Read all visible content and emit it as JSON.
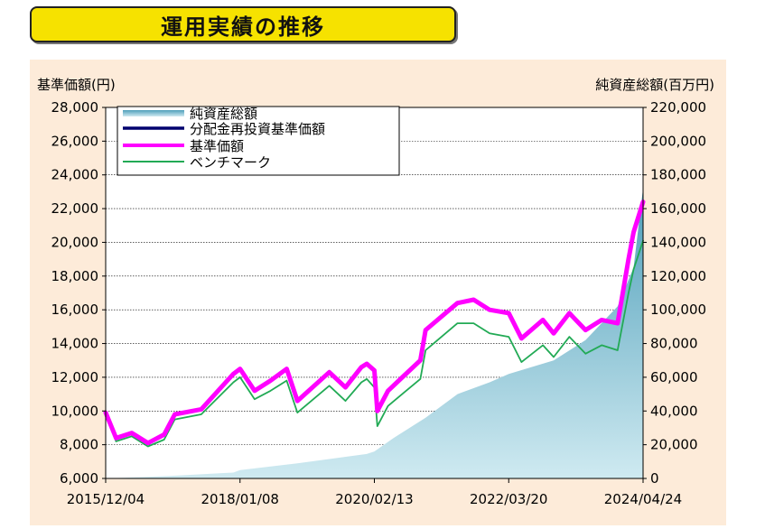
{
  "title": "運用実績の推移",
  "chart_data": {
    "type": "line",
    "ylabel_left": "基準価額(円)",
    "ylabel_right": "純資産総額(百万円)",
    "xticks": [
      "2015/12/04",
      "2018/01/08",
      "2020/02/13",
      "2022/03/20",
      "2024/04/24"
    ],
    "ylim_left": [
      6000,
      28000
    ],
    "ylim_right": [
      0,
      220000
    ],
    "yticks_left": [
      "6,000",
      "8,000",
      "10,000",
      "12,000",
      "14,000",
      "16,000",
      "18,000",
      "20,000",
      "22,000",
      "24,000",
      "26,000",
      "28,000"
    ],
    "yticks_right": [
      "0",
      "20,000",
      "40,000",
      "60,000",
      "80,000",
      "100,000",
      "120,000",
      "140,000",
      "160,000",
      "180,000",
      "200,000",
      "220,000"
    ],
    "grid": true,
    "legend_position": "top-left",
    "series": [
      {
        "name": "純資産総額",
        "kind": "area",
        "axis": "right",
        "color": "#7fbfd0",
        "x": [
          "2015/12/04",
          "2016/12",
          "2017/12",
          "2018/01/08",
          "2018/12",
          "2019/06",
          "2020/01",
          "2020/02/13",
          "2020/06",
          "2020/12",
          "2021/06",
          "2021/12",
          "2022/03/20",
          "2022/12",
          "2023/06",
          "2023/12",
          "2024/03",
          "2024/04/24"
        ],
        "values": [
          0,
          1500,
          3500,
          5000,
          9000,
          11500,
          14500,
          16000,
          24000,
          36000,
          50000,
          57000,
          62000,
          70000,
          82000,
          102000,
          125000,
          172000
        ]
      },
      {
        "name": "分配金再投資基準価額",
        "kind": "line",
        "axis": "left",
        "color": "#00006e",
        "x": [
          "2015/12/04",
          "2016/02",
          "2016/05",
          "2016/08",
          "2016/11",
          "2017/01",
          "2017/06",
          "2017/12",
          "2018/01/08",
          "2018/04",
          "2018/07",
          "2018/10",
          "2018/12",
          "2019/06",
          "2019/09",
          "2019/12",
          "2020/01",
          "2020/02/13",
          "2020/03",
          "2020/05",
          "2020/08",
          "2020/11",
          "2020/12",
          "2021/06",
          "2021/09",
          "2021/12",
          "2022/03/20",
          "2022/06",
          "2022/10",
          "2022/12",
          "2023/03",
          "2023/06",
          "2023/09",
          "2023/12",
          "2024/02",
          "2024/03",
          "2024/04/24"
        ],
        "values": [
          9900,
          8400,
          8700,
          8100,
          8600,
          9800,
          10100,
          12200,
          12500,
          11200,
          11800,
          12500,
          10600,
          12300,
          11400,
          12600,
          12800,
          12400,
          10000,
          11200,
          12100,
          13000,
          14800,
          16400,
          16600,
          16000,
          15800,
          14300,
          15400,
          14600,
          15800,
          14800,
          15400,
          15200,
          19000,
          20600,
          22400
        ]
      },
      {
        "name": "基準価額",
        "kind": "line",
        "axis": "left",
        "color": "#ff00ff",
        "x": [
          "2015/12/04",
          "2016/02",
          "2016/05",
          "2016/08",
          "2016/11",
          "2017/01",
          "2017/06",
          "2017/12",
          "2018/01/08",
          "2018/04",
          "2018/07",
          "2018/10",
          "2018/12",
          "2019/06",
          "2019/09",
          "2019/12",
          "2020/01",
          "2020/02/13",
          "2020/03",
          "2020/05",
          "2020/08",
          "2020/11",
          "2020/12",
          "2021/06",
          "2021/09",
          "2021/12",
          "2022/03/20",
          "2022/06",
          "2022/10",
          "2022/12",
          "2023/03",
          "2023/06",
          "2023/09",
          "2023/12",
          "2024/02",
          "2024/03",
          "2024/04/24"
        ],
        "values": [
          9900,
          8400,
          8700,
          8100,
          8600,
          9800,
          10100,
          12200,
          12500,
          11200,
          11800,
          12500,
          10600,
          12300,
          11400,
          12600,
          12800,
          12400,
          10000,
          11200,
          12100,
          13000,
          14800,
          16400,
          16600,
          16000,
          15800,
          14300,
          15400,
          14600,
          15800,
          14800,
          15400,
          15200,
          19000,
          20600,
          22400
        ]
      },
      {
        "name": "ベンチマーク",
        "kind": "line",
        "axis": "left",
        "color": "#22aa55",
        "x": [
          "2015/12/04",
          "2016/02",
          "2016/05",
          "2016/08",
          "2016/11",
          "2017/01",
          "2017/06",
          "2017/12",
          "2018/01/08",
          "2018/04",
          "2018/07",
          "2018/10",
          "2018/12",
          "2019/06",
          "2019/09",
          "2019/12",
          "2020/01",
          "2020/02/13",
          "2020/03",
          "2020/05",
          "2020/08",
          "2020/11",
          "2020/12",
          "2021/06",
          "2021/09",
          "2021/12",
          "2022/03/20",
          "2022/06",
          "2022/10",
          "2022/12",
          "2023/03",
          "2023/06",
          "2023/09",
          "2023/12",
          "2024/02",
          "2024/03",
          "2024/04/24"
        ],
        "values": [
          9800,
          8200,
          8500,
          7900,
          8300,
          9500,
          9800,
          11700,
          12000,
          10700,
          11200,
          11800,
          9900,
          11500,
          10600,
          11700,
          11900,
          11400,
          9100,
          10300,
          11100,
          11900,
          13600,
          15200,
          15200,
          14600,
          14400,
          12900,
          13900,
          13200,
          14400,
          13400,
          13900,
          13600,
          17000,
          18400,
          20100
        ]
      }
    ]
  }
}
